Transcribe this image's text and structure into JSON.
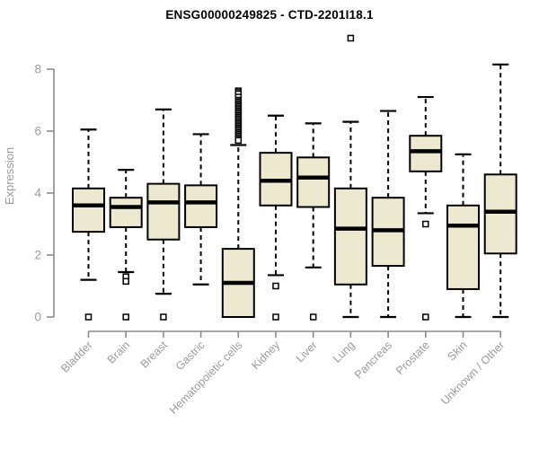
{
  "chart_data": {
    "type": "boxplot",
    "title": "ENSG00000249825 - CTD-2201I18.1",
    "xlabel": "",
    "ylabel": "Expression",
    "ylim": [
      0,
      8
    ],
    "yticks": [
      0,
      2,
      4,
      6,
      8
    ],
    "grid": false,
    "legend": "none",
    "categories": [
      "Bladder",
      "Brain",
      "Breast",
      "Gastric",
      "Hematopoietic cells",
      "Kidney",
      "Liver",
      "Lung",
      "Pancreas",
      "Prostate",
      "Skin",
      "Unknown / Other"
    ],
    "series": [
      {
        "name": "Bladder",
        "low": 1.2,
        "q1": 2.75,
        "median": 3.6,
        "q3": 4.15,
        "high": 6.05,
        "outliers": [
          0
        ]
      },
      {
        "name": "Brain",
        "low": 1.45,
        "q1": 2.9,
        "median": 3.55,
        "q3": 3.85,
        "high": 4.75,
        "outliers": [
          1.3,
          1.15,
          0
        ]
      },
      {
        "name": "Breast",
        "low": 0.75,
        "q1": 2.5,
        "median": 3.7,
        "q3": 4.3,
        "high": 6.7,
        "outliers": [
          0
        ]
      },
      {
        "name": "Gastric",
        "low": 1.05,
        "q1": 2.9,
        "median": 3.7,
        "q3": 4.25,
        "high": 5.9,
        "outliers": []
      },
      {
        "name": "Hematopoietic cells",
        "low": 0,
        "q1": 0,
        "median": 1.1,
        "q3": 2.2,
        "high": 5.55,
        "outliers": [
          7.3,
          7.25,
          7.2,
          7.1,
          7.0,
          6.95,
          6.9,
          6.85,
          6.8,
          6.75,
          6.7,
          6.65,
          6.6,
          6.55,
          6.5,
          6.45,
          6.4,
          6.35,
          6.3,
          6.25,
          6.2,
          6.15,
          6.1,
          6.05,
          6.0,
          5.95,
          5.9,
          5.85,
          5.8,
          5.75,
          5.7
        ]
      },
      {
        "name": "Kidney",
        "low": 1.35,
        "q1": 3.6,
        "median": 4.4,
        "q3": 5.3,
        "high": 6.5,
        "outliers": [
          1.0,
          0
        ]
      },
      {
        "name": "Liver",
        "low": 1.6,
        "q1": 3.55,
        "median": 4.5,
        "q3": 5.15,
        "high": 6.25,
        "outliers": [
          0
        ]
      },
      {
        "name": "Lung",
        "low": 0,
        "q1": 1.05,
        "median": 2.85,
        "q3": 4.15,
        "high": 6.3,
        "outliers": [
          9.0
        ]
      },
      {
        "name": "Pancreas",
        "low": 0,
        "q1": 1.65,
        "median": 2.8,
        "q3": 3.85,
        "high": 6.65,
        "outliers": []
      },
      {
        "name": "Prostate",
        "low": 3.35,
        "q1": 4.7,
        "median": 5.35,
        "q3": 5.85,
        "high": 7.1,
        "outliers": [
          3.0,
          0
        ]
      },
      {
        "name": "Skin",
        "low": 0,
        "q1": 0.9,
        "median": 2.95,
        "q3": 3.6,
        "high": 5.25,
        "outliers": []
      },
      {
        "name": "Unknown / Other",
        "low": 0,
        "q1": 2.05,
        "median": 3.4,
        "q3": 4.6,
        "high": 8.15,
        "outliers": []
      }
    ],
    "colors": {
      "box_fill": "#EDE8D0",
      "box_stroke": "#000000",
      "axis": "#8A8A8A",
      "label": "#9A9A9A",
      "title": "#000000",
      "background": "#FFFFFF"
    }
  }
}
